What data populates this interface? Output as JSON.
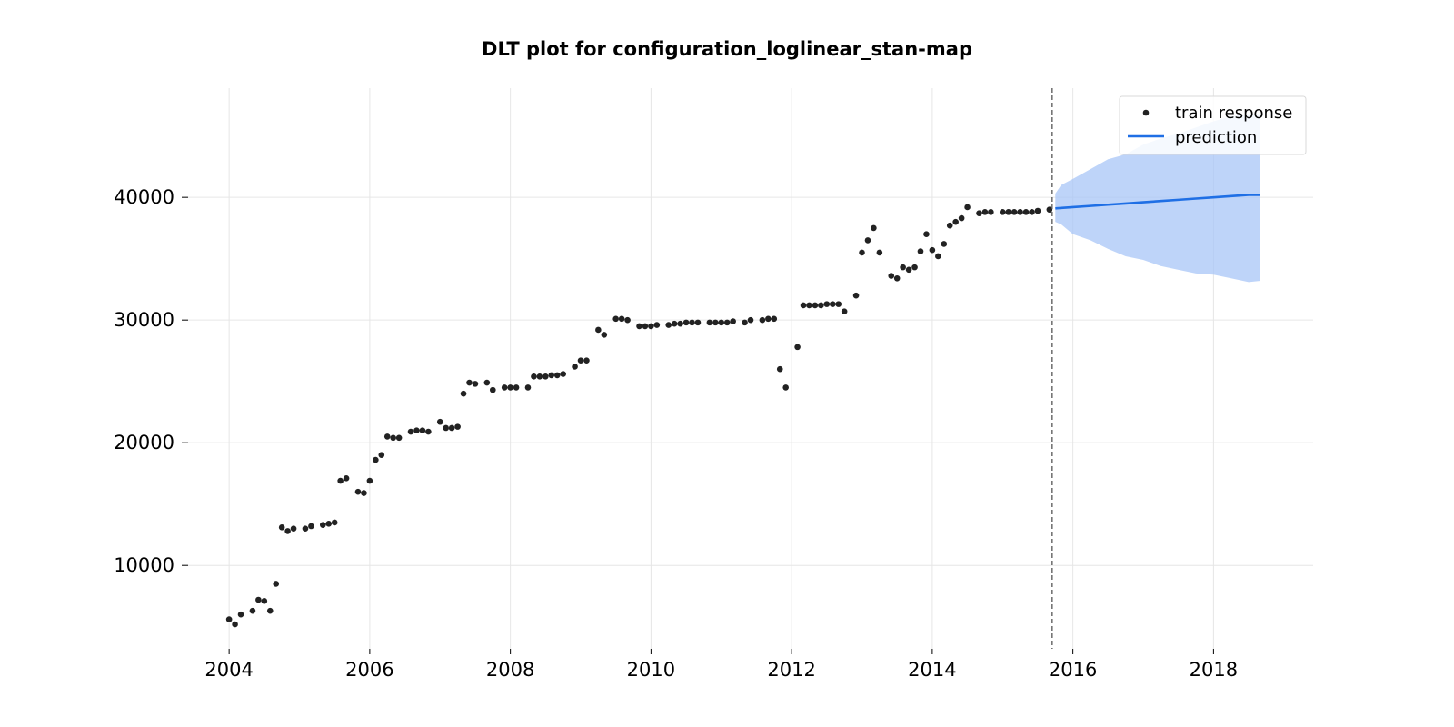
{
  "chart_data": {
    "type": "scatter",
    "title": "DLT plot for configuration_loglinear_stan-map",
    "xlabel": "",
    "ylabel": "",
    "x_ticks": [
      "2004",
      "2006",
      "2008",
      "2010",
      "2012",
      "2014",
      "2016",
      "2018"
    ],
    "y_ticks": [
      "10000",
      "20000",
      "30000",
      "40000"
    ],
    "xlim": [
      "2003-06",
      "2019-06"
    ],
    "ylim": [
      3200,
      48900
    ],
    "grid": true,
    "legend_position": "top-right",
    "train_end_date": "2015-09",
    "colors": {
      "train_response": "#222222",
      "prediction": "#1f6fe5",
      "prediction_band": "#a8c6f7",
      "train_end_line": "#555555"
    },
    "series": [
      {
        "name": "train response",
        "kind": "scatter",
        "points": [
          [
            "2004-01",
            5600
          ],
          [
            "2004-02",
            5200
          ],
          [
            "2004-03",
            6000
          ],
          [
            "2004-05",
            6300
          ],
          [
            "2004-06",
            7200
          ],
          [
            "2004-07",
            7100
          ],
          [
            "2004-08",
            6300
          ],
          [
            "2004-09",
            8500
          ],
          [
            "2004-10",
            13100
          ],
          [
            "2004-11",
            12800
          ],
          [
            "2004-12",
            13000
          ],
          [
            "2005-02",
            13000
          ],
          [
            "2005-03",
            13200
          ],
          [
            "2005-05",
            13300
          ],
          [
            "2005-06",
            13400
          ],
          [
            "2005-07",
            13500
          ],
          [
            "2005-08",
            16900
          ],
          [
            "2005-09",
            17100
          ],
          [
            "2005-11",
            16000
          ],
          [
            "2005-12",
            15900
          ],
          [
            "2006-01",
            16900
          ],
          [
            "2006-02",
            18600
          ],
          [
            "2006-03",
            19000
          ],
          [
            "2006-04",
            20500
          ],
          [
            "2006-05",
            20400
          ],
          [
            "2006-06",
            20400
          ],
          [
            "2006-08",
            20900
          ],
          [
            "2006-09",
            21000
          ],
          [
            "2006-10",
            21000
          ],
          [
            "2006-11",
            20900
          ],
          [
            "2007-01",
            21700
          ],
          [
            "2007-02",
            21200
          ],
          [
            "2007-03",
            21200
          ],
          [
            "2007-04",
            21300
          ],
          [
            "2007-05",
            24000
          ],
          [
            "2007-06",
            24900
          ],
          [
            "2007-07",
            24800
          ],
          [
            "2007-09",
            24900
          ],
          [
            "2007-10",
            24300
          ],
          [
            "2007-12",
            24500
          ],
          [
            "2008-01",
            24500
          ],
          [
            "2008-02",
            24500
          ],
          [
            "2008-04",
            24500
          ],
          [
            "2008-05",
            25400
          ],
          [
            "2008-06",
            25400
          ],
          [
            "2008-07",
            25400
          ],
          [
            "2008-08",
            25500
          ],
          [
            "2008-09",
            25500
          ],
          [
            "2008-10",
            25600
          ],
          [
            "2008-12",
            26200
          ],
          [
            "2009-01",
            26700
          ],
          [
            "2009-02",
            26700
          ],
          [
            "2009-04",
            29200
          ],
          [
            "2009-05",
            28800
          ],
          [
            "2009-07",
            30100
          ],
          [
            "2009-08",
            30100
          ],
          [
            "2009-09",
            30000
          ],
          [
            "2009-11",
            29500
          ],
          [
            "2009-12",
            29500
          ],
          [
            "2010-01",
            29500
          ],
          [
            "2010-02",
            29600
          ],
          [
            "2010-04",
            29600
          ],
          [
            "2010-05",
            29700
          ],
          [
            "2010-06",
            29700
          ],
          [
            "2010-07",
            29800
          ],
          [
            "2010-08",
            29800
          ],
          [
            "2010-09",
            29800
          ],
          [
            "2010-11",
            29800
          ],
          [
            "2010-12",
            29800
          ],
          [
            "2011-01",
            29800
          ],
          [
            "2011-02",
            29800
          ],
          [
            "2011-03",
            29900
          ],
          [
            "2011-05",
            29800
          ],
          [
            "2011-06",
            30000
          ],
          [
            "2011-08",
            30000
          ],
          [
            "2011-09",
            30100
          ],
          [
            "2011-10",
            30100
          ],
          [
            "2011-11",
            26000
          ],
          [
            "2011-12",
            24500
          ],
          [
            "2012-02",
            27800
          ],
          [
            "2012-03",
            31200
          ],
          [
            "2012-04",
            31200
          ],
          [
            "2012-05",
            31200
          ],
          [
            "2012-06",
            31200
          ],
          [
            "2012-07",
            31300
          ],
          [
            "2012-08",
            31300
          ],
          [
            "2012-09",
            31300
          ],
          [
            "2012-10",
            30700
          ],
          [
            "2012-12",
            32000
          ],
          [
            "2013-01",
            35500
          ],
          [
            "2013-02",
            36500
          ],
          [
            "2013-03",
            37500
          ],
          [
            "2013-04",
            35500
          ],
          [
            "2013-06",
            33600
          ],
          [
            "2013-07",
            33400
          ],
          [
            "2013-08",
            34300
          ],
          [
            "2013-09",
            34100
          ],
          [
            "2013-10",
            34300
          ],
          [
            "2013-11",
            35600
          ],
          [
            "2013-12",
            37000
          ],
          [
            "2014-01",
            35700
          ],
          [
            "2014-02",
            35200
          ],
          [
            "2014-03",
            36200
          ],
          [
            "2014-04",
            37700
          ],
          [
            "2014-05",
            38000
          ],
          [
            "2014-06",
            38300
          ],
          [
            "2014-07",
            39200
          ],
          [
            "2014-09",
            38700
          ],
          [
            "2014-10",
            38800
          ],
          [
            "2014-11",
            38800
          ],
          [
            "2015-01",
            38800
          ],
          [
            "2015-02",
            38800
          ],
          [
            "2015-03",
            38800
          ],
          [
            "2015-04",
            38800
          ],
          [
            "2015-05",
            38800
          ],
          [
            "2015-06",
            38800
          ],
          [
            "2015-07",
            38900
          ],
          [
            "2015-09",
            39000
          ]
        ]
      },
      {
        "name": "prediction",
        "kind": "line",
        "points": [
          [
            "2015-10",
            39100
          ],
          [
            "2016-01",
            39200
          ],
          [
            "2016-04",
            39300
          ],
          [
            "2016-07",
            39400
          ],
          [
            "2016-10",
            39500
          ],
          [
            "2017-01",
            39600
          ],
          [
            "2017-04",
            39700
          ],
          [
            "2017-07",
            39800
          ],
          [
            "2017-10",
            39900
          ],
          [
            "2018-01",
            40000
          ],
          [
            "2018-04",
            40100
          ],
          [
            "2018-07",
            40200
          ],
          [
            "2018-09",
            40200
          ]
        ]
      },
      {
        "name": "",
        "kind": "band",
        "points": [
          [
            "2015-10",
            38000,
            40300
          ],
          [
            "2015-11",
            37800,
            41000
          ],
          [
            "2016-01",
            37000,
            41500
          ],
          [
            "2016-04",
            36500,
            42300
          ],
          [
            "2016-07",
            35800,
            43100
          ],
          [
            "2016-10",
            35200,
            43500
          ],
          [
            "2017-01",
            34900,
            44300
          ],
          [
            "2017-04",
            34400,
            44800
          ],
          [
            "2017-07",
            34100,
            45200
          ],
          [
            "2017-10",
            33800,
            45700
          ],
          [
            "2018-01",
            33700,
            46200
          ],
          [
            "2018-04",
            33400,
            46600
          ],
          [
            "2018-07",
            33100,
            46800
          ],
          [
            "2018-09",
            33200,
            46800
          ]
        ]
      }
    ]
  }
}
